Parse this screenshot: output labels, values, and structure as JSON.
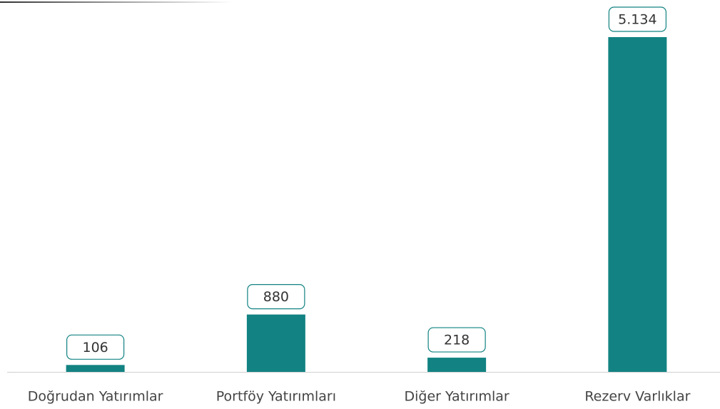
{
  "chart_data": {
    "type": "bar",
    "categories": [
      "Doğrudan Yatırımlar",
      "Portföy Yatırımları",
      "Diğer Yatırımlar",
      "Rezerv Varlıklar"
    ],
    "values": [
      106,
      880,
      218,
      5134
    ],
    "value_labels": [
      "106",
      "880",
      "218",
      "5.134"
    ],
    "color": "#128282"
  }
}
